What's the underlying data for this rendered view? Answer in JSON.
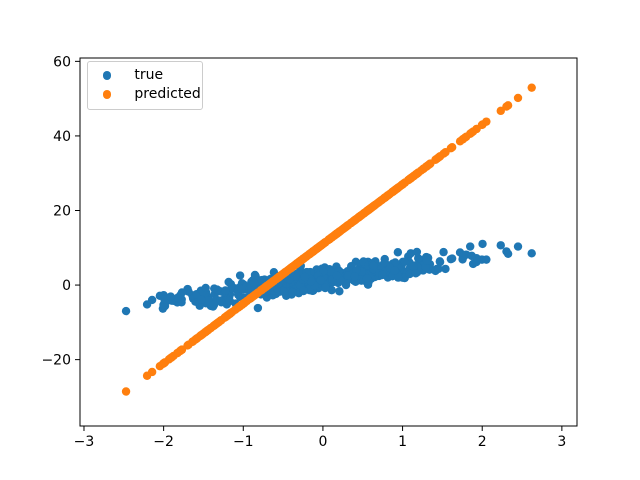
{
  "figure": {
    "background": "#ffffff"
  },
  "chart_data": {
    "type": "scatter",
    "title": "",
    "xlabel": "",
    "ylabel": "",
    "xlim": [
      -3.05,
      3.19
    ],
    "ylim": [
      -37.8,
      60.9
    ],
    "xticks": [
      -3,
      -2,
      -1,
      0,
      1,
      2,
      3
    ],
    "yticks": [
      -20,
      0,
      20,
      40,
      60
    ],
    "grid": false,
    "axis_color": "#000000",
    "tick_label_color": "#000000",
    "legend": {
      "position": "upper-left",
      "background": "#ffffff",
      "border_color": "#cccccc",
      "entries": [
        "true",
        "predicted"
      ]
    },
    "series": [
      {
        "name": "true",
        "color": "#1f77b4",
        "marker": "circle",
        "relation": {
          "slope": 2.9,
          "intercept": 1.6,
          "noise_std": 1.5
        },
        "x_range": [
          -2.83,
          2.86
        ],
        "y_range": [
          -6.5,
          9.9
        ]
      },
      {
        "name": "predicted",
        "color": "#ff7f0e",
        "marker": "circle",
        "relation": {
          "slope": 16.0,
          "intercept": 11.0,
          "noise_std": 0.0
        },
        "x_range": [
          -2.83,
          2.86
        ],
        "y_range": [
          -34.3,
          56.8
        ]
      }
    ],
    "x_sampling": {
      "distribution": "normal",
      "mean": 0.0,
      "std": 0.95,
      "n_points": 500,
      "min": -2.83,
      "max": 2.86,
      "seed": 7
    }
  }
}
